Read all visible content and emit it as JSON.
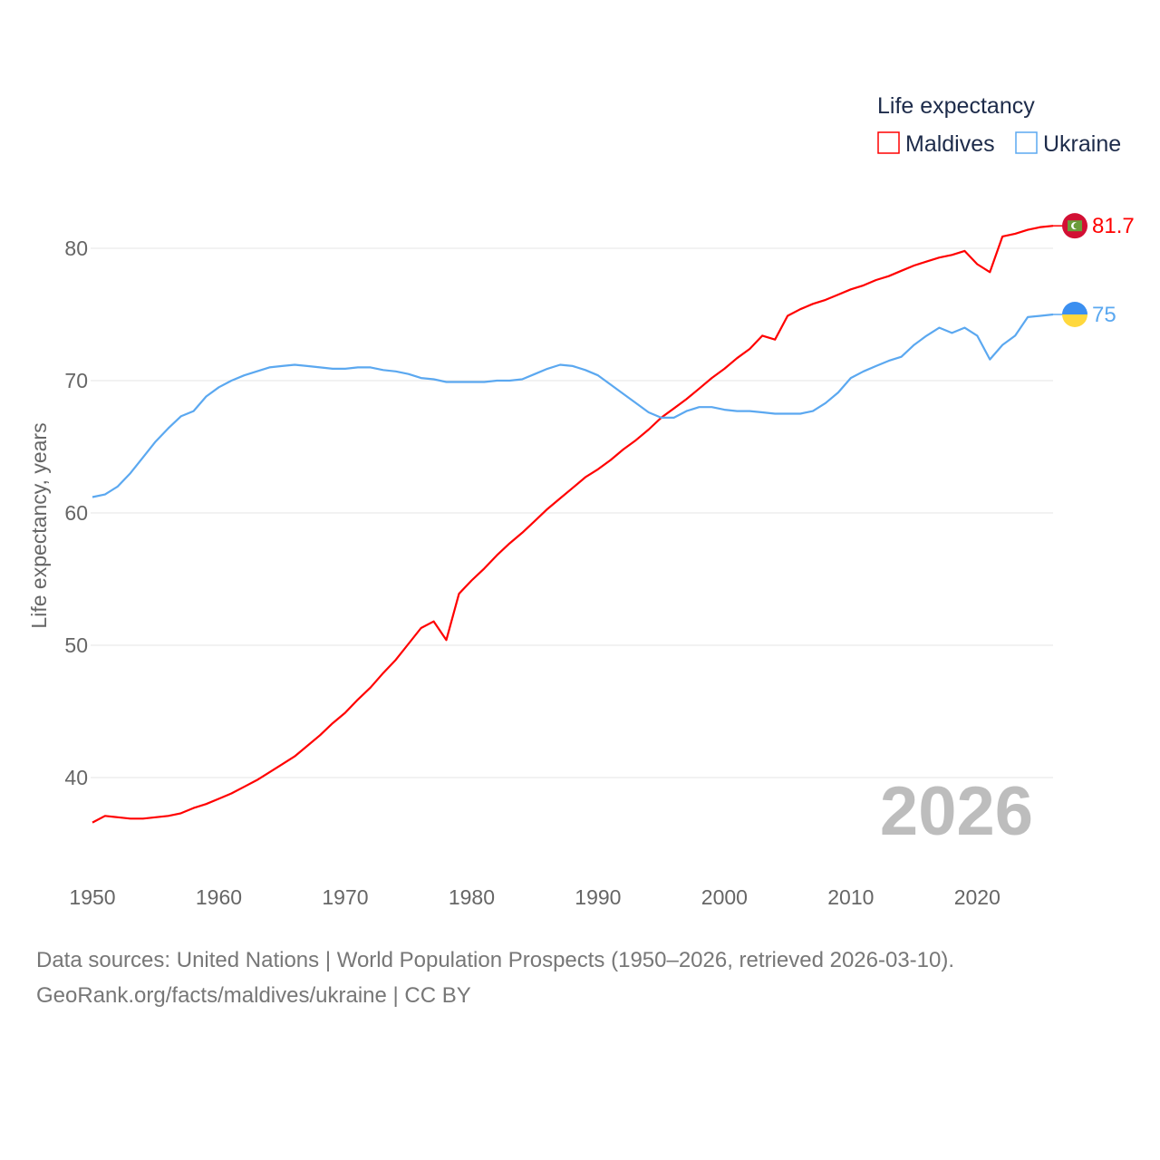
{
  "chart_data": {
    "type": "line",
    "title": "",
    "ylabel": "Life expectancy, years",
    "xlabel": "",
    "legend_title": "Life expectancy",
    "legend_position": "top-right",
    "xlim": [
      1950,
      2026
    ],
    "ylim": [
      35,
      85
    ],
    "xticks": [
      1950,
      1960,
      1970,
      1980,
      1990,
      2000,
      2010,
      2020
    ],
    "yticks": [
      40,
      50,
      60,
      70,
      80
    ],
    "grid": true,
    "watermark_year": "2026",
    "x_start": 1950,
    "series": [
      {
        "name": "Maldives",
        "color": "#ff0000",
        "end_label": "81.7",
        "flag": "maldives-flag",
        "values": [
          36.6,
          37.1,
          37.0,
          36.9,
          36.9,
          37.0,
          37.1,
          37.3,
          37.7,
          38.0,
          38.4,
          38.8,
          39.3,
          39.8,
          40.4,
          41.0,
          41.6,
          42.4,
          43.2,
          44.1,
          44.9,
          45.9,
          46.8,
          47.9,
          48.9,
          50.1,
          51.3,
          51.8,
          50.4,
          53.9,
          54.9,
          55.8,
          56.8,
          57.7,
          58.5,
          59.4,
          60.3,
          61.1,
          61.9,
          62.7,
          63.3,
          64.0,
          64.8,
          65.5,
          66.3,
          67.2,
          67.9,
          68.6,
          69.4,
          70.2,
          70.9,
          71.7,
          72.4,
          73.4,
          73.1,
          74.9,
          75.4,
          75.8,
          76.1,
          76.5,
          76.9,
          77.2,
          77.6,
          77.9,
          78.3,
          78.7,
          79.0,
          79.3,
          79.5,
          79.8,
          78.8,
          78.2,
          80.9,
          81.1,
          81.4,
          81.6,
          81.7
        ]
      },
      {
        "name": "Ukraine",
        "color": "#5ba8f0",
        "end_label": "75",
        "flag": "ukraine-flag",
        "values": [
          61.2,
          61.4,
          62.0,
          63.0,
          64.2,
          65.4,
          66.4,
          67.3,
          67.7,
          68.8,
          69.5,
          70.0,
          70.4,
          70.7,
          71.0,
          71.1,
          71.2,
          71.1,
          71.0,
          70.9,
          70.9,
          71.0,
          71.0,
          70.8,
          70.7,
          70.5,
          70.2,
          70.1,
          69.9,
          69.9,
          69.9,
          69.9,
          70.0,
          70.0,
          70.1,
          70.5,
          70.9,
          71.2,
          71.1,
          70.8,
          70.4,
          69.7,
          69.0,
          68.3,
          67.6,
          67.2,
          67.2,
          67.7,
          68.0,
          68.0,
          67.8,
          67.7,
          67.7,
          67.6,
          67.5,
          67.5,
          67.5,
          67.7,
          68.3,
          69.1,
          70.2,
          70.7,
          71.1,
          71.5,
          71.8,
          72.7,
          73.4,
          74.0,
          73.6,
          74.0,
          73.4,
          71.6,
          72.7,
          73.4,
          74.8,
          74.9,
          75.0
        ]
      }
    ]
  },
  "footer": {
    "line1": "Data sources: United Nations | World Population Prospects (1950–2026, retrieved 2026-03-10).",
    "line2": "GeoRank.org/facts/maldives/ukraine | CC BY"
  }
}
